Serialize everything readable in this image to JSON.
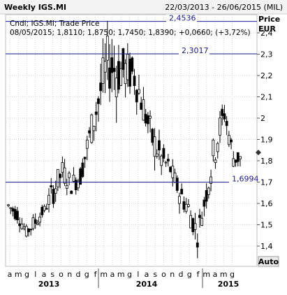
{
  "header": {
    "title": "Weekly IGS.MI",
    "date_range": "22/03/2013 - 26/06/2015 (MIL)"
  },
  "info": {
    "line1": "Cndl; IGS.MI; Trade Price",
    "line2": "08/05/2015; 1,8110; 1,8750; 1,7450; 1,8390; +0,0660; (+3,72%)"
  },
  "axis": {
    "price_label": "Price",
    "currency_label": "EUR",
    "auto_button": "Auto",
    "ytick_labels": [
      "2,4",
      "2,3",
      "2,2",
      "2,1",
      "2",
      "1,9",
      "1,8",
      "1,7",
      "1,6",
      "1,5",
      "1,4"
    ],
    "month_labels": [
      "a",
      "m",
      "g",
      "l",
      "a",
      "s",
      "o",
      "n",
      "d",
      "g",
      "f",
      "m",
      "a",
      "m",
      "g",
      "l",
      "a",
      "s",
      "o",
      "n",
      "d",
      "g",
      "f",
      "m",
      "a",
      "m",
      "g"
    ],
    "year_labels": [
      "2013",
      "2014",
      "2015"
    ]
  },
  "colors": {
    "candle": "#000000",
    "reference_line": "#1a1a8c",
    "grid": "#d4d4d4",
    "last_price_marker": "#333333"
  },
  "chart_data": {
    "type": "candlestick",
    "title": "Weekly IGS.MI",
    "ylabel": "Price EUR",
    "ylim": [
      1.35,
      2.5
    ],
    "grid": true,
    "reference_lines": [
      {
        "label": "2,4536",
        "value": 2.4536
      },
      {
        "label": "2,3017",
        "value": 2.3017
      },
      {
        "label": "1,6994",
        "value": 1.6994
      }
    ],
    "last_value": 1.839,
    "x_axis": {
      "months": [
        "a",
        "m",
        "g",
        "l",
        "a",
        "s",
        "o",
        "n",
        "d",
        "g",
        "f",
        "m",
        "a",
        "m",
        "g",
        "l",
        "a",
        "s",
        "o",
        "n",
        "d",
        "g",
        "f",
        "m",
        "a",
        "m",
        "g"
      ],
      "years": [
        "2013",
        "2014",
        "2015"
      ]
    },
    "weekly_close_profile": [
      {
        "month": "a 2013",
        "low": 1.55,
        "high": 1.63
      },
      {
        "month": "m 2013",
        "low": 1.5,
        "high": 1.6
      },
      {
        "month": "g 2013",
        "low": 1.43,
        "high": 1.5
      },
      {
        "month": "l 2013",
        "low": 1.46,
        "high": 1.57
      },
      {
        "month": "a 2013",
        "low": 1.54,
        "high": 1.6
      },
      {
        "month": "s 2013",
        "low": 1.58,
        "high": 1.74
      },
      {
        "month": "o 2013",
        "low": 1.68,
        "high": 1.82
      },
      {
        "month": "n 2013",
        "low": 1.63,
        "high": 1.75
      },
      {
        "month": "d 2013",
        "low": 1.66,
        "high": 1.8
      },
      {
        "month": "g 2014",
        "low": 1.82,
        "high": 2.0
      },
      {
        "month": "f 2014",
        "low": 1.95,
        "high": 2.22
      },
      {
        "month": "m 2014",
        "low": 2.1,
        "high": 2.42
      },
      {
        "month": "a 2014",
        "low": 2.05,
        "high": 2.4
      },
      {
        "month": "m 2014",
        "low": 2.1,
        "high": 2.35
      },
      {
        "month": "g 2014",
        "low": 2.08,
        "high": 2.32
      },
      {
        "month": "l 2014",
        "low": 1.95,
        "high": 2.15
      },
      {
        "month": "a 2014",
        "low": 1.8,
        "high": 2.0
      },
      {
        "month": "s 2014",
        "low": 1.72,
        "high": 1.9
      },
      {
        "month": "o 2014",
        "low": 1.7,
        "high": 1.82
      },
      {
        "month": "n 2014",
        "low": 1.58,
        "high": 1.72
      },
      {
        "month": "d 2014",
        "low": 1.5,
        "high": 1.65
      },
      {
        "month": "g 2015",
        "low": 1.38,
        "high": 1.53
      },
      {
        "month": "f 2015",
        "low": 1.58,
        "high": 1.72
      },
      {
        "month": "m 2015",
        "low": 1.75,
        "high": 2.0
      },
      {
        "month": "a 2015",
        "low": 1.95,
        "high": 2.1
      },
      {
        "month": "m 2015",
        "low": 1.75,
        "high": 1.88
      }
    ]
  }
}
